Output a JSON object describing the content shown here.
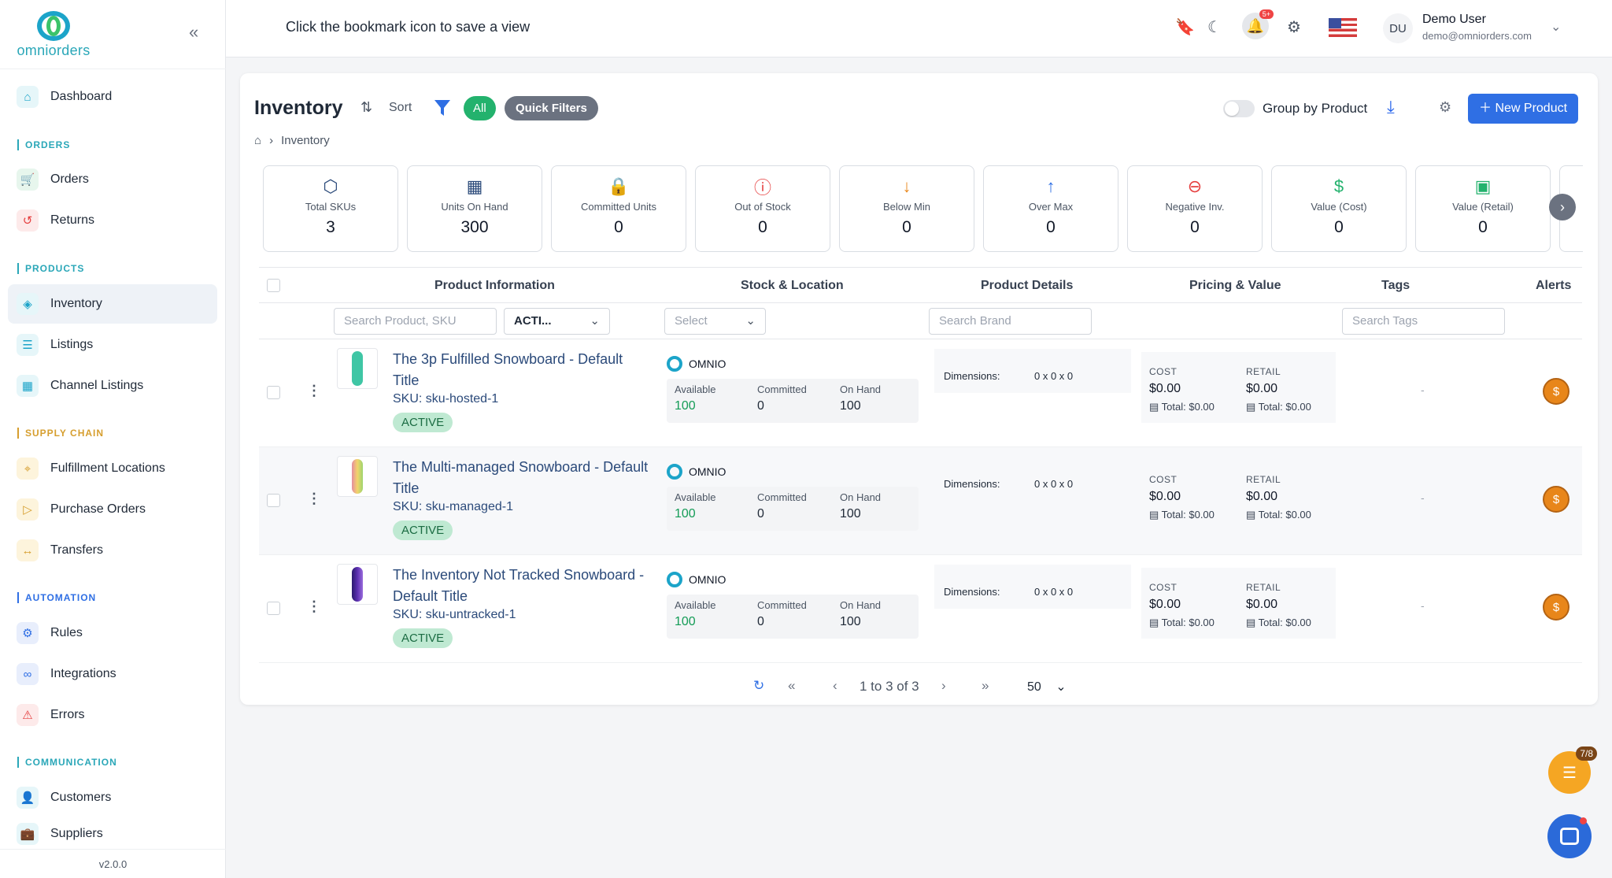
{
  "brand": {
    "name": "omniorders"
  },
  "sidebar": {
    "version": "v2.0.0",
    "items": [
      {
        "label": "Dashboard",
        "icon": "home-icon"
      },
      {
        "label": "Orders",
        "icon": "cart-icon"
      },
      {
        "label": "Returns",
        "icon": "return-icon"
      },
      {
        "label": "Inventory",
        "icon": "box-icon",
        "active": true
      },
      {
        "label": "Listings",
        "icon": "list-icon"
      },
      {
        "label": "Channel Listings",
        "icon": "grid-icon"
      },
      {
        "label": "Fulfillment Locations",
        "icon": "pin-icon"
      },
      {
        "label": "Purchase Orders",
        "icon": "doc-icon"
      },
      {
        "label": "Transfers",
        "icon": "transfer-icon"
      },
      {
        "label": "Rules",
        "icon": "cog-icon"
      },
      {
        "label": "Integrations",
        "icon": "link-icon"
      },
      {
        "label": "Errors",
        "icon": "warning-icon"
      },
      {
        "label": "Customers",
        "icon": "person-icon"
      },
      {
        "label": "Suppliers",
        "icon": "briefcase-icon"
      }
    ],
    "sections": [
      "ORDERS",
      "PRODUCTS",
      "SUPPLY CHAIN",
      "AUTOMATION",
      "COMMUNICATION"
    ]
  },
  "header": {
    "hint": "Click the bookmark icon to save a view",
    "notif_badge": "5+",
    "user_initials": "DU",
    "user_name": "Demo User",
    "user_email": "demo@omniorders.com"
  },
  "toolbar": {
    "title": "Inventory",
    "sort": "Sort",
    "all": "All",
    "quick_filters": "Quick Filters",
    "group_by": "Group by Product",
    "new_product": "New Product",
    "breadcrumb": "Inventory"
  },
  "kpis": [
    {
      "label": "Total SKUs",
      "value": "3",
      "icon": "cube-icon",
      "color": "#2b4a7a"
    },
    {
      "label": "Units On Hand",
      "value": "300",
      "icon": "grid-icon",
      "color": "#2b4a7a"
    },
    {
      "label": "Committed Units",
      "value": "0",
      "icon": "lock-icon",
      "color": "#2b4a7a"
    },
    {
      "label": "Out of Stock",
      "value": "0",
      "icon": "alert-circle-icon",
      "color": "#e53e3e"
    },
    {
      "label": "Below Min",
      "value": "0",
      "icon": "arrow-down-icon",
      "color": "#e8861a"
    },
    {
      "label": "Over Max",
      "value": "0",
      "icon": "arrow-up-icon",
      "color": "#2f6fe4"
    },
    {
      "label": "Negative Inv.",
      "value": "0",
      "icon": "minus-circle-icon",
      "color": "#e53e3e"
    },
    {
      "label": "Value (Cost)",
      "value": "0",
      "icon": "dollar-icon",
      "color": "#23b26d"
    },
    {
      "label": "Value (Retail)",
      "value": "0",
      "icon": "cash-icon",
      "color": "#23b26d"
    }
  ],
  "table": {
    "headers": [
      "Product Information",
      "Stock & Location",
      "Product Details",
      "Pricing & Value",
      "Tags",
      "Alerts"
    ],
    "filters": {
      "search_product": "Search Product, SKU",
      "status": "ACTI...",
      "location": "Select",
      "brand": "Search Brand",
      "tags": "Search Tags"
    },
    "labels": {
      "available": "Available",
      "committed": "Committed",
      "on_hand": "On Hand",
      "dimensions": "Dimensions:",
      "cost": "COST",
      "retail": "RETAIL",
      "tag_empty": "-"
    },
    "rows": [
      {
        "name": "The 3p Fulfilled Snowboard - Default Title",
        "sku": "SKU: sku-hosted-1",
        "status": "ACTIVE",
        "channel": "OMNIO",
        "available": "100",
        "committed": "0",
        "on_hand": "100",
        "dimensions": "0 x 0 x 0",
        "cost": "$0.00",
        "cost_total": "Total: $0.00",
        "retail": "$0.00",
        "retail_total": "Total: $0.00",
        "board_color": "#3fc6a5"
      },
      {
        "name": "The Multi-managed Snowboard - Default Title",
        "sku": "SKU: sku-managed-1",
        "status": "ACTIVE",
        "channel": "OMNIO",
        "available": "100",
        "committed": "0",
        "on_hand": "100",
        "dimensions": "0 x 0 x 0",
        "cost": "$0.00",
        "cost_total": "Total: $0.00",
        "retail": "$0.00",
        "retail_total": "Total: $0.00",
        "board_color": "#e58da0"
      },
      {
        "name": "The Inventory Not Tracked Snowboard - Default Title",
        "sku": "SKU: sku-untracked-1",
        "status": "ACTIVE",
        "channel": "OMNIO",
        "available": "100",
        "committed": "0",
        "on_hand": "100",
        "dimensions": "0 x 0 x 0",
        "cost": "$0.00",
        "cost_total": "Total: $0.00",
        "retail": "$0.00",
        "retail_total": "Total: $0.00",
        "board_color": "#5b2fb0"
      }
    ]
  },
  "pager": {
    "text": "1 to 3 of 3",
    "page_size": "50"
  },
  "fab": {
    "badge": "7/8"
  }
}
